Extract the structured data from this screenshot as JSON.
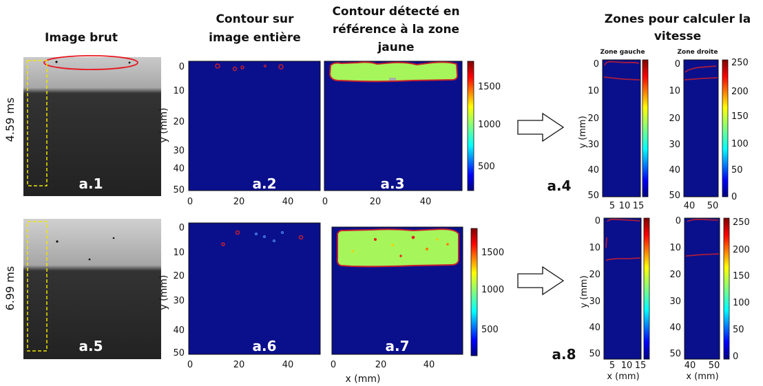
{
  "headers": {
    "raw": "Image brut",
    "full_line1": "Contour sur",
    "full_line2": "image entière",
    "ref_line1": "Contour détecté en",
    "ref_line2": "référence à la zone",
    "ref_line3": "jaune",
    "zones_line1": "Zones pour calculer la",
    "zones_line2": "vitesse",
    "zone_left": "Zone gauche",
    "zone_right": "Zone droite"
  },
  "rows": [
    {
      "time_label": "4.59 ms",
      "labels": {
        "raw": "a.1",
        "full": "a.2",
        "ref": "a.3",
        "zones": "a.4"
      }
    },
    {
      "time_label": "6.99 ms",
      "labels": {
        "raw": "a.5",
        "full": "a.6",
        "ref": "a.7",
        "zones": "a.8"
      }
    }
  ],
  "axes": {
    "y_label": "y (mm)",
    "x_label": "x (mm)",
    "y_ticks": [
      "0",
      "10",
      "20",
      "30",
      "40",
      "50"
    ],
    "x_ticks_main": [
      "0",
      "20",
      "40"
    ],
    "x_ticks_left": [
      "5",
      "10",
      "15"
    ],
    "x_ticks_right": [
      "40",
      "50"
    ],
    "cbar_main": [
      "500",
      "1000",
      "1500"
    ],
    "cbar_zone": [
      "0",
      "50",
      "100",
      "150",
      "200",
      "250"
    ]
  },
  "colors": {
    "plot_bg": "#0a0f8c",
    "blob": "#a6f55a",
    "contour": "#c8202c",
    "raw_dark": "#2a2a2a",
    "raw_light": "#b8b8b8",
    "yellow_box": "#f2e600",
    "red_ellipse": "#e8141e"
  }
}
